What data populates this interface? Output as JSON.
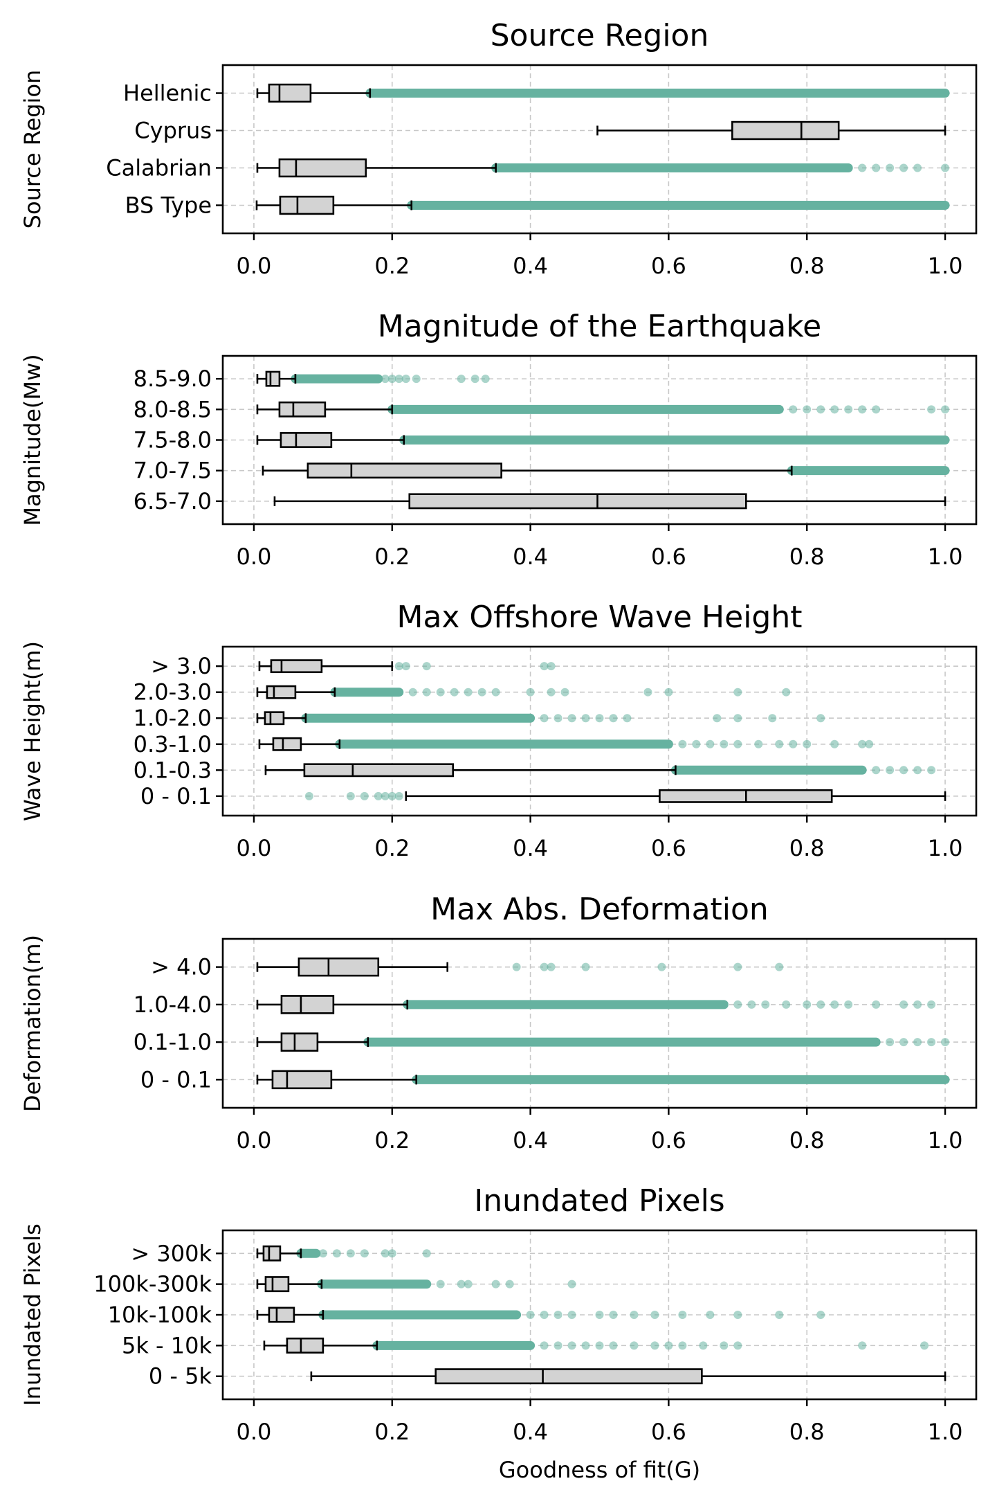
{
  "style": {
    "outlier_color": "#66b2a0",
    "box_fill": "#d3d3d3",
    "grid": "on (dashed, light gray)"
  },
  "xaxis": {
    "label": "Goodness of fit(G)",
    "ticks": [
      "0.0",
      "0.2",
      "0.4",
      "0.6",
      "0.8",
      "1.0"
    ],
    "xlim": [
      -0.045,
      1.045
    ]
  },
  "chart_data": [
    {
      "type": "box",
      "title": "Source Region",
      "ylabel": "Source Region",
      "categories": [
        "Hellenic",
        "Cyprus",
        "Calabrian",
        "BS Type"
      ],
      "boxes": [
        {
          "category": "Hellenic",
          "whisker_low": 0.005,
          "q1": 0.022,
          "median": 0.037,
          "q3": 0.082,
          "whisker_high": 0.168,
          "outliers_dense": [
            0.168,
            1.0
          ],
          "outliers_sparse": []
        },
        {
          "category": "Cyprus",
          "whisker_low": 0.497,
          "q1": 0.692,
          "median": 0.792,
          "q3": 0.846,
          "whisker_high": 1.0,
          "outliers_dense": null,
          "outliers_sparse": []
        },
        {
          "category": "Calabrian",
          "whisker_low": 0.005,
          "q1": 0.037,
          "median": 0.061,
          "q3": 0.162,
          "whisker_high": 0.35,
          "outliers_dense": [
            0.35,
            0.86
          ],
          "outliers_sparse": [
            0.88,
            0.9,
            0.92,
            0.94,
            0.96,
            1.0
          ]
        },
        {
          "category": "BS Type",
          "whisker_low": 0.004,
          "q1": 0.038,
          "median": 0.063,
          "q3": 0.115,
          "whisker_high": 0.228,
          "outliers_dense": [
            0.228,
            1.0
          ],
          "outliers_sparse": []
        }
      ]
    },
    {
      "type": "box",
      "title": "Magnitude of the Earthquake",
      "ylabel": "Magnitude(Mw)",
      "categories": [
        "8.5-9.0",
        "8.0-8.5",
        "7.5-8.0",
        "7.0-7.5",
        "6.5-7.0"
      ],
      "boxes": [
        {
          "category": "8.5-9.0",
          "whisker_low": 0.005,
          "q1": 0.018,
          "median": 0.024,
          "q3": 0.037,
          "whisker_high": 0.06,
          "outliers_dense": [
            0.06,
            0.18
          ],
          "outliers_sparse": [
            0.19,
            0.2,
            0.21,
            0.22,
            0.235,
            0.3,
            0.32,
            0.335
          ]
        },
        {
          "category": "8.0-8.5",
          "whisker_low": 0.005,
          "q1": 0.037,
          "median": 0.057,
          "q3": 0.103,
          "whisker_high": 0.2,
          "outliers_dense": [
            0.2,
            0.76
          ],
          "outliers_sparse": [
            0.78,
            0.8,
            0.82,
            0.84,
            0.86,
            0.88,
            0.9,
            0.98,
            1.0
          ]
        },
        {
          "category": "7.5-8.0",
          "whisker_low": 0.005,
          "q1": 0.039,
          "median": 0.061,
          "q3": 0.112,
          "whisker_high": 0.217,
          "outliers_dense": [
            0.217,
            1.0
          ],
          "outliers_sparse": []
        },
        {
          "category": "7.0-7.5",
          "whisker_low": 0.013,
          "q1": 0.078,
          "median": 0.141,
          "q3": 0.358,
          "whisker_high": 0.778,
          "outliers_dense": [
            0.778,
            1.0
          ],
          "outliers_sparse": []
        },
        {
          "category": "6.5-7.0",
          "whisker_low": 0.03,
          "q1": 0.225,
          "median": 0.497,
          "q3": 0.712,
          "whisker_high": 1.0,
          "outliers_dense": null,
          "outliers_sparse": []
        }
      ]
    },
    {
      "type": "box",
      "title": "Max Offshore Wave Height",
      "ylabel": "Wave Height(m)",
      "categories": [
        "> 3.0",
        "2.0-3.0",
        "1.0-2.0",
        "0.3-1.0",
        "0.1-0.3",
        "0 - 0.1"
      ],
      "boxes": [
        {
          "category": "> 3.0",
          "whisker_low": 0.008,
          "q1": 0.025,
          "median": 0.04,
          "q3": 0.098,
          "whisker_high": 0.2,
          "outliers_dense": null,
          "outliers_sparse": [
            0.21,
            0.22,
            0.25,
            0.42,
            0.43
          ]
        },
        {
          "category": "2.0-3.0",
          "whisker_low": 0.005,
          "q1": 0.019,
          "median": 0.029,
          "q3": 0.06,
          "whisker_high": 0.117,
          "outliers_dense": [
            0.117,
            0.21
          ],
          "outliers_sparse": [
            0.23,
            0.25,
            0.27,
            0.29,
            0.31,
            0.33,
            0.35,
            0.4,
            0.43,
            0.45,
            0.57,
            0.6,
            0.7,
            0.77
          ]
        },
        {
          "category": "1.0-2.0",
          "whisker_low": 0.005,
          "q1": 0.016,
          "median": 0.024,
          "q3": 0.043,
          "whisker_high": 0.075,
          "outliers_dense": [
            0.075,
            0.4
          ],
          "outliers_sparse": [
            0.42,
            0.44,
            0.46,
            0.48,
            0.5,
            0.52,
            0.54,
            0.67,
            0.7,
            0.75,
            0.82
          ]
        },
        {
          "category": "0.3-1.0",
          "whisker_low": 0.008,
          "q1": 0.028,
          "median": 0.042,
          "q3": 0.068,
          "whisker_high": 0.124,
          "outliers_dense": [
            0.124,
            0.6
          ],
          "outliers_sparse": [
            0.62,
            0.64,
            0.66,
            0.68,
            0.7,
            0.73,
            0.76,
            0.78,
            0.8,
            0.84,
            0.88,
            0.89
          ]
        },
        {
          "category": "0.1-0.3",
          "whisker_low": 0.017,
          "q1": 0.073,
          "median": 0.143,
          "q3": 0.288,
          "whisker_high": 0.61,
          "outliers_dense": [
            0.61,
            0.88
          ],
          "outliers_sparse": [
            0.9,
            0.92,
            0.94,
            0.96,
            0.98
          ]
        },
        {
          "category": "0 - 0.1",
          "whisker_low": 0.22,
          "q1": 0.587,
          "median": 0.712,
          "q3": 0.836,
          "whisker_high": 1.0,
          "outliers_dense": null,
          "outliers_sparse": [
            0.08,
            0.14,
            0.16,
            0.18,
            0.19,
            0.2,
            0.21
          ]
        }
      ]
    },
    {
      "type": "box",
      "title": "Max Abs. Deformation",
      "ylabel": "Deformation(m)",
      "categories": [
        "> 4.0",
        "1.0-4.0",
        "0.1-1.0",
        "0 - 0.1"
      ],
      "boxes": [
        {
          "category": "> 4.0",
          "whisker_low": 0.005,
          "q1": 0.065,
          "median": 0.108,
          "q3": 0.18,
          "whisker_high": 0.28,
          "outliers_dense": null,
          "outliers_sparse": [
            0.38,
            0.42,
            0.43,
            0.48,
            0.59,
            0.7,
            0.76
          ]
        },
        {
          "category": "1.0-4.0",
          "whisker_low": 0.005,
          "q1": 0.04,
          "median": 0.068,
          "q3": 0.115,
          "whisker_high": 0.222,
          "outliers_dense": [
            0.222,
            0.68
          ],
          "outliers_sparse": [
            0.7,
            0.72,
            0.74,
            0.77,
            0.8,
            0.82,
            0.84,
            0.86,
            0.9,
            0.94,
            0.96,
            0.98
          ]
        },
        {
          "category": "0.1-1.0",
          "whisker_low": 0.005,
          "q1": 0.04,
          "median": 0.059,
          "q3": 0.092,
          "whisker_high": 0.165,
          "outliers_dense": [
            0.165,
            0.9
          ],
          "outliers_sparse": [
            0.92,
            0.94,
            0.96,
            0.98,
            1.0
          ]
        },
        {
          "category": "0 - 0.1",
          "whisker_low": 0.005,
          "q1": 0.027,
          "median": 0.048,
          "q3": 0.112,
          "whisker_high": 0.235,
          "outliers_dense": [
            0.235,
            1.0
          ],
          "outliers_sparse": []
        }
      ]
    },
    {
      "type": "box",
      "title": "Inundated Pixels",
      "ylabel": "Inundated Pixels",
      "categories": [
        "> 300k",
        "100k-300k",
        "10k-100k",
        "5k - 10k",
        "0 - 5k"
      ],
      "boxes": [
        {
          "category": "> 300k",
          "whisker_low": 0.005,
          "q1": 0.014,
          "median": 0.022,
          "q3": 0.038,
          "whisker_high": 0.068,
          "outliers_dense": [
            0.068,
            0.09
          ],
          "outliers_sparse": [
            0.1,
            0.12,
            0.14,
            0.16,
            0.19,
            0.2,
            0.25
          ]
        },
        {
          "category": "100k-300k",
          "whisker_low": 0.005,
          "q1": 0.017,
          "median": 0.027,
          "q3": 0.05,
          "whisker_high": 0.098,
          "outliers_dense": [
            0.098,
            0.25
          ],
          "outliers_sparse": [
            0.27,
            0.3,
            0.31,
            0.35,
            0.37,
            0.46
          ]
        },
        {
          "category": "10k-100k",
          "whisker_low": 0.005,
          "q1": 0.022,
          "median": 0.033,
          "q3": 0.058,
          "whisker_high": 0.1,
          "outliers_dense": [
            0.1,
            0.38
          ],
          "outliers_sparse": [
            0.4,
            0.42,
            0.44,
            0.46,
            0.5,
            0.52,
            0.55,
            0.58,
            0.62,
            0.66,
            0.7,
            0.76,
            0.82
          ]
        },
        {
          "category": "5k - 10k",
          "whisker_low": 0.015,
          "q1": 0.048,
          "median": 0.068,
          "q3": 0.1,
          "whisker_high": 0.178,
          "outliers_dense": [
            0.178,
            0.4
          ],
          "outliers_sparse": [
            0.42,
            0.44,
            0.46,
            0.48,
            0.5,
            0.52,
            0.55,
            0.58,
            0.6,
            0.62,
            0.65,
            0.68,
            0.7,
            0.88,
            0.97
          ]
        },
        {
          "category": "0 - 5k",
          "whisker_low": 0.083,
          "q1": 0.263,
          "median": 0.418,
          "q3": 0.648,
          "whisker_high": 1.0,
          "outliers_dense": null,
          "outliers_sparse": []
        }
      ]
    }
  ]
}
